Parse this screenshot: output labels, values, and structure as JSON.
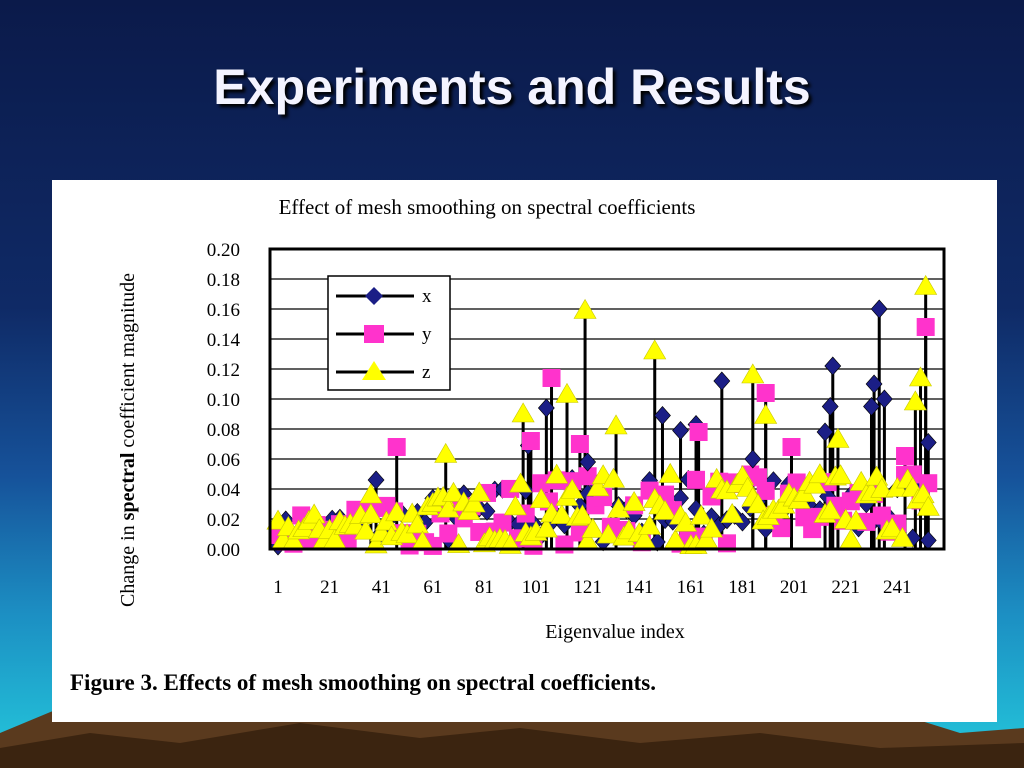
{
  "slide": {
    "title": "Experiments and Results"
  },
  "figure": {
    "caption": "Figure 3. Effects of mesh smoothing on spectral coefficients."
  },
  "colors": {
    "x": "#1b1e86",
    "y": "#ff33cc",
    "z": "#ffff00",
    "stems": "#000000"
  },
  "chart_data": {
    "type": "line",
    "title": "Effect of mesh smoothing on spectral coefficients",
    "xlabel": "Eigenvalue index",
    "ylabel_parts": [
      "Change in ",
      "spectral",
      " coefficient magnitude"
    ],
    "ylim": [
      0,
      0.2
    ],
    "yticks": [
      "0.00",
      "0.02",
      "0.04",
      "0.06",
      "0.08",
      "0.10",
      "0.12",
      "0.14",
      "0.16",
      "0.18",
      "0.20"
    ],
    "xticks": [
      "1",
      "21",
      "41",
      "61",
      "81",
      "101",
      "121",
      "141",
      "161",
      "181",
      "201",
      "221",
      "241"
    ],
    "x_range": [
      1,
      256
    ],
    "grid": true,
    "legend": "top-left",
    "series": [
      {
        "name": "x",
        "marker": "diamond",
        "peaks": [
          [
            39,
            0.046
          ],
          [
            98,
            0.069
          ],
          [
            105,
            0.094
          ],
          [
            121,
            0.058
          ],
          [
            150,
            0.089
          ],
          [
            157,
            0.079
          ],
          [
            163,
            0.083
          ],
          [
            173,
            0.112
          ],
          [
            185,
            0.06
          ],
          [
            213,
            0.078
          ],
          [
            215,
            0.095
          ],
          [
            216,
            0.122
          ],
          [
            231,
            0.095
          ],
          [
            232,
            0.11
          ],
          [
            234,
            0.16
          ],
          [
            236,
            0.1
          ],
          [
            253,
            0.071
          ]
        ]
      },
      {
        "name": "y",
        "marker": "square",
        "peaks": [
          [
            47,
            0.068
          ],
          [
            99,
            0.072
          ],
          [
            107,
            0.114
          ],
          [
            118,
            0.07
          ],
          [
            164,
            0.078
          ],
          [
            190,
            0.104
          ],
          [
            200,
            0.068
          ],
          [
            244,
            0.062
          ],
          [
            252,
            0.148
          ]
        ]
      },
      {
        "name": "z",
        "marker": "triangle",
        "peaks": [
          [
            37,
            0.036
          ],
          [
            66,
            0.063
          ],
          [
            96,
            0.09
          ],
          [
            113,
            0.103
          ],
          [
            120,
            0.159
          ],
          [
            132,
            0.082
          ],
          [
            147,
            0.132
          ],
          [
            185,
            0.116
          ],
          [
            190,
            0.089
          ],
          [
            218,
            0.073
          ],
          [
            250,
            0.114
          ],
          [
            248,
            0.098
          ],
          [
            252,
            0.175
          ]
        ]
      }
    ]
  }
}
